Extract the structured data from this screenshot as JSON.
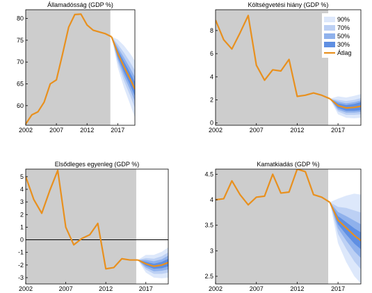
{
  "colors": {
    "history_bg": "#cdcdcd",
    "line": "#e8901e",
    "band90": "#dde8fb",
    "band70": "#bcd0f4",
    "band50": "#8fb1ec",
    "band30": "#5f8fe2",
    "zero_line": "#000000"
  },
  "legend": {
    "items": [
      {
        "label": "90%",
        "color_key": "band90"
      },
      {
        "label": "70%",
        "color_key": "band70"
      },
      {
        "label": "50%",
        "color_key": "band50"
      },
      {
        "label": "30%",
        "color_key": "band30"
      },
      {
        "label": "Átlag",
        "color_key": "line"
      }
    ],
    "placement": "top-right of second panel"
  },
  "chart_data": [
    {
      "type": "area",
      "title": "Államadósság (GDP %)",
      "xlim": [
        2002,
        2019.8
      ],
      "ylim": [
        55.5,
        82
      ],
      "xticks": [
        2002,
        2007,
        2012,
        2017
      ],
      "yticks": [
        60,
        65,
        70,
        75,
        80
      ],
      "history_end": 2015.8,
      "x": [
        2002,
        2003,
        2004,
        2005,
        2006,
        2007,
        2008,
        2009,
        2010,
        2011,
        2012,
        2013,
        2014,
        2015,
        2016
      ],
      "values": [
        55.8,
        57.9,
        58.6,
        60.8,
        65.0,
        65.9,
        71.8,
        78.0,
        80.9,
        81.0,
        78.5,
        77.3,
        76.9,
        76.5,
        75.8
      ],
      "forecast": {
        "x": [
          2016,
          2017,
          2018,
          2019,
          2019.8
        ],
        "mean": [
          75.8,
          72.0,
          69.0,
          66.2,
          63.8
        ],
        "band30": [
          [
            75.8,
            75.8
          ],
          [
            71.2,
            72.8
          ],
          [
            67.8,
            70.2
          ],
          [
            64.8,
            67.6
          ],
          [
            62.2,
            65.4
          ]
        ],
        "band50": [
          [
            75.8,
            75.8
          ],
          [
            70.6,
            73.4
          ],
          [
            66.9,
            71.1
          ],
          [
            63.7,
            68.7
          ],
          [
            61.0,
            66.6
          ]
        ],
        "band70": [
          [
            75.8,
            75.8
          ],
          [
            69.9,
            74.1
          ],
          [
            65.8,
            72.2
          ],
          [
            62.4,
            70.0
          ],
          [
            59.5,
            68.1
          ]
        ],
        "band90": [
          [
            75.8,
            75.8
          ],
          [
            68.8,
            75.2
          ],
          [
            64.2,
            73.8
          ],
          [
            60.4,
            72.0
          ],
          [
            57.3,
            70.3
          ]
        ]
      }
    },
    {
      "type": "area",
      "title": "Költségvetési hiány (GDP %)",
      "xlim": [
        2002,
        2019.8
      ],
      "ylim": [
        -0.2,
        9.8
      ],
      "xticks": [
        2002,
        2007,
        2012,
        2017
      ],
      "yticks": [
        0,
        2,
        4,
        6,
        8
      ],
      "history_end": 2015.8,
      "x": [
        2002,
        2003,
        2004,
        2005,
        2006,
        2007,
        2008,
        2009,
        2010,
        2011,
        2012,
        2013,
        2014,
        2015,
        2016
      ],
      "values": [
        8.9,
        7.2,
        6.4,
        7.8,
        9.3,
        5.0,
        3.7,
        4.6,
        4.5,
        5.5,
        2.3,
        2.4,
        2.6,
        2.4,
        2.1
      ],
      "forecast": {
        "x": [
          2016,
          2017,
          2018,
          2019,
          2019.8
        ],
        "mean": [
          2.1,
          1.5,
          1.3,
          1.35,
          1.45
        ],
        "band30": [
          [
            2.1,
            2.1
          ],
          [
            1.3,
            1.7
          ],
          [
            1.05,
            1.55
          ],
          [
            1.05,
            1.65
          ],
          [
            1.1,
            1.8
          ]
        ],
        "band50": [
          [
            2.1,
            2.1
          ],
          [
            1.15,
            1.85
          ],
          [
            0.9,
            1.7
          ],
          [
            0.9,
            1.8
          ],
          [
            0.95,
            1.95
          ]
        ],
        "band70": [
          [
            2.1,
            2.1
          ],
          [
            1.0,
            2.0
          ],
          [
            0.7,
            1.9
          ],
          [
            0.7,
            2.0
          ],
          [
            0.75,
            2.15
          ]
        ],
        "band90": [
          [
            2.1,
            2.1
          ],
          [
            0.75,
            2.3
          ],
          [
            0.45,
            2.2
          ],
          [
            0.4,
            2.35
          ],
          [
            0.45,
            2.5
          ]
        ]
      }
    },
    {
      "type": "area",
      "title": "Elsődleges egyenleg (GDP %)",
      "xlim": [
        2002,
        2019.8
      ],
      "ylim": [
        -3.5,
        5.6
      ],
      "xticks": [
        2002,
        2007,
        2012,
        2017
      ],
      "yticks": [
        -3,
        -2,
        -1,
        0,
        1,
        2,
        3,
        4,
        5
      ],
      "zero_line": true,
      "history_end": 2015.8,
      "x": [
        2002,
        2003,
        2004,
        2005,
        2006,
        2007,
        2008,
        2009,
        2010,
        2011,
        2012,
        2013,
        2014,
        2015,
        2016
      ],
      "values": [
        5.0,
        3.2,
        2.1,
        3.9,
        5.5,
        1.0,
        -0.4,
        0.1,
        0.4,
        1.3,
        -2.3,
        -2.2,
        -1.5,
        -1.6,
        -1.6
      ],
      "forecast": {
        "x": [
          2016,
          2017,
          2018,
          2019,
          2019.8
        ],
        "mean": [
          -1.6,
          -1.9,
          -2.1,
          -2.0,
          -1.8
        ],
        "band30": [
          [
            -1.6,
            -1.6
          ],
          [
            -2.05,
            -1.75
          ],
          [
            -2.3,
            -1.9
          ],
          [
            -2.25,
            -1.75
          ],
          [
            -2.1,
            -1.5
          ]
        ],
        "band50": [
          [
            -1.6,
            -1.6
          ],
          [
            -2.2,
            -1.6
          ],
          [
            -2.5,
            -1.7
          ],
          [
            -2.45,
            -1.55
          ],
          [
            -2.35,
            -1.25
          ]
        ],
        "band70": [
          [
            -1.6,
            -1.6
          ],
          [
            -2.35,
            -1.45
          ],
          [
            -2.7,
            -1.5
          ],
          [
            -2.7,
            -1.3
          ],
          [
            -2.6,
            -1.0
          ]
        ],
        "band90": [
          [
            -1.6,
            -1.6
          ],
          [
            -2.6,
            -1.2
          ],
          [
            -3.0,
            -1.2
          ],
          [
            -3.05,
            -0.95
          ],
          [
            -3.0,
            -0.6
          ]
        ]
      }
    },
    {
      "type": "area",
      "title": "Kamatkiadás (GDP %)",
      "xlim": [
        2002,
        2019.8
      ],
      "ylim": [
        2.35,
        4.6
      ],
      "xticks": [
        2002,
        2007,
        2012,
        2017
      ],
      "yticks": [
        2.5,
        3,
        3.5,
        4,
        4.5
      ],
      "history_end": 2015.8,
      "x": [
        2002,
        2003,
        2004,
        2005,
        2006,
        2007,
        2008,
        2009,
        2010,
        2011,
        2012,
        2013,
        2014,
        2015,
        2016
      ],
      "values": [
        4.0,
        4.02,
        4.37,
        4.1,
        3.9,
        4.05,
        4.07,
        4.5,
        4.13,
        4.15,
        4.6,
        4.55,
        4.1,
        4.05,
        3.95
      ],
      "forecast": {
        "x": [
          2016,
          2017,
          2018,
          2019,
          2019.8
        ],
        "mean": [
          3.95,
          3.6,
          3.45,
          3.3,
          3.2
        ],
        "band30": [
          [
            3.95,
            3.95
          ],
          [
            3.52,
            3.68
          ],
          [
            3.32,
            3.56
          ],
          [
            3.14,
            3.44
          ],
          [
            3.03,
            3.36
          ]
        ],
        "band50": [
          [
            3.95,
            3.95
          ],
          [
            3.44,
            3.76
          ],
          [
            3.2,
            3.68
          ],
          [
            2.99,
            3.59
          ],
          [
            2.86,
            3.52
          ]
        ],
        "band70": [
          [
            3.95,
            3.95
          ],
          [
            3.33,
            3.86
          ],
          [
            3.04,
            3.84
          ],
          [
            2.79,
            3.79
          ],
          [
            2.64,
            3.75
          ]
        ],
        "band90": [
          [
            3.95,
            3.95
          ],
          [
            3.15,
            4.02
          ],
          [
            2.78,
            4.08
          ],
          [
            2.5,
            4.12
          ],
          [
            2.36,
            4.1
          ]
        ]
      }
    }
  ]
}
